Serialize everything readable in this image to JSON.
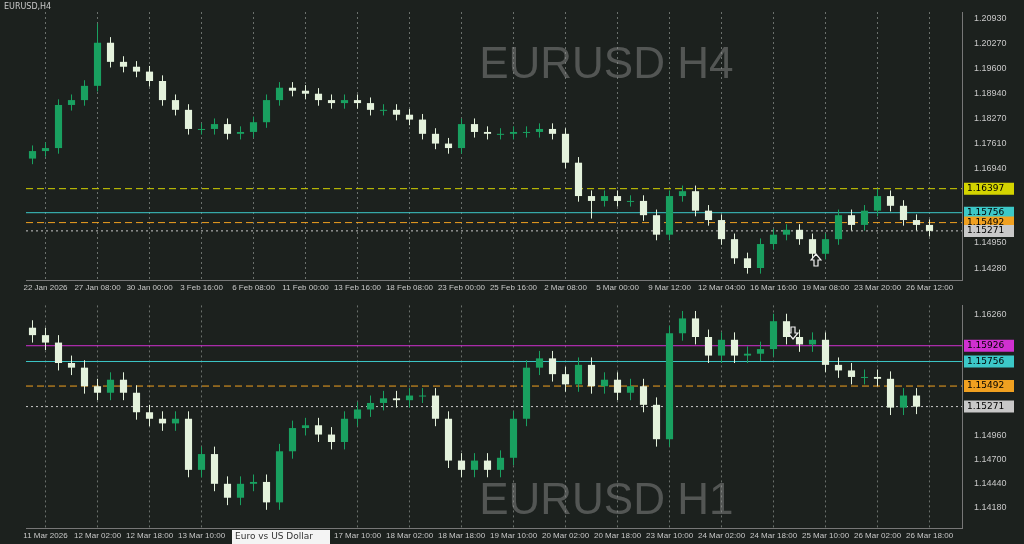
{
  "chart_data": [
    {
      "type": "candlestick",
      "title": "EURUSD,H4",
      "annotations": [
        "EURUSD H4"
      ],
      "grid": "x",
      "categories": [
        null,
        "22 Jan 2026",
        null,
        null,
        null,
        "27 Jan 08:00",
        null,
        null,
        null,
        "30 Jan 00:00",
        null,
        null,
        null,
        "3 Feb 16:00",
        null,
        null,
        null,
        "6 Feb 08:00",
        null,
        null,
        null,
        "11 Feb 00:00",
        null,
        null,
        null,
        "13 Feb 16:00",
        null,
        null,
        null,
        "18 Feb 08:00",
        null,
        null,
        null,
        "23 Feb 00:00",
        null,
        null,
        null,
        "25 Feb 16:00",
        null,
        null,
        null,
        "2 Mar 08:00",
        null,
        null,
        null,
        "5 Mar 00:00",
        null,
        null,
        null,
        "9 Mar 12:00",
        null,
        null,
        null,
        "12 Mar 04:00",
        null,
        null,
        null,
        "16 Mar 16:00",
        null,
        null,
        null,
        "19 Mar 08:00",
        null,
        null,
        null,
        "23 Mar 20:00",
        null,
        null,
        null,
        "26 Mar 12:00",
        null,
        null
      ],
      "ohlc": [
        [
          1.172,
          1.1755,
          1.1705,
          1.174
        ],
        [
          1.174,
          1.1763,
          1.1725,
          1.1748
        ],
        [
          1.1748,
          1.1878,
          1.1733,
          1.1863
        ],
        [
          1.1863,
          1.1891,
          1.1848,
          1.1876
        ],
        [
          1.1876,
          1.1929,
          1.1861,
          1.1914
        ],
        [
          1.1914,
          1.208,
          1.1899,
          1.2029
        ],
        [
          1.2029,
          1.2044,
          1.1963,
          1.1978
        ],
        [
          1.1978,
          1.1993,
          1.195,
          1.1965
        ],
        [
          1.1965,
          1.198,
          1.1937,
          1.1952
        ],
        [
          1.1952,
          1.1967,
          1.1912,
          1.1927
        ],
        [
          1.1927,
          1.1942,
          1.1861,
          1.1876
        ],
        [
          1.1876,
          1.1891,
          1.1835,
          1.185
        ],
        [
          1.185,
          1.1865,
          1.1784,
          1.1799
        ],
        [
          1.1799,
          1.1814,
          1.1784,
          1.1799
        ],
        [
          1.1799,
          1.1827,
          1.1784,
          1.1812
        ],
        [
          1.1812,
          1.1827,
          1.1771,
          1.1786
        ],
        [
          1.1786,
          1.1806,
          1.1771,
          1.1791
        ],
        [
          1.1791,
          1.1832,
          1.1776,
          1.1817
        ],
        [
          1.1817,
          1.1891,
          1.1802,
          1.1876
        ],
        [
          1.1876,
          1.1924,
          1.1861,
          1.1909
        ],
        [
          1.1909,
          1.1924,
          1.1886,
          1.1901
        ],
        [
          1.1901,
          1.1916,
          1.1878,
          1.1893
        ],
        [
          1.1893,
          1.1908,
          1.1861,
          1.1876
        ],
        [
          1.1876,
          1.1891,
          1.1853,
          1.1868
        ],
        [
          1.1868,
          1.1891,
          1.1853,
          1.1876
        ],
        [
          1.1876,
          1.1891,
          1.1853,
          1.1868
        ],
        [
          1.1868,
          1.1883,
          1.1835,
          1.185
        ],
        [
          1.185,
          1.1865,
          1.1835,
          1.185
        ],
        [
          1.185,
          1.1865,
          1.1822,
          1.1837
        ],
        [
          1.1837,
          1.1852,
          1.1809,
          1.1824
        ],
        [
          1.1824,
          1.1839,
          1.1771,
          1.1786
        ],
        [
          1.1786,
          1.1801,
          1.1745,
          1.176
        ],
        [
          1.176,
          1.1775,
          1.1733,
          1.1748
        ],
        [
          1.1748,
          1.1827,
          1.1733,
          1.1812
        ],
        [
          1.1812,
          1.1827,
          1.1776,
          1.1791
        ],
        [
          1.1791,
          1.1806,
          1.1771,
          1.1786
        ],
        [
          1.1786,
          1.1801,
          1.1771,
          1.1786
        ],
        [
          1.1786,
          1.1806,
          1.1771,
          1.1791
        ],
        [
          1.1791,
          1.1806,
          1.1776,
          1.1791
        ],
        [
          1.1791,
          1.1814,
          1.1776,
          1.1799
        ],
        [
          1.1799,
          1.1814,
          1.1771,
          1.1786
        ],
        [
          1.1786,
          1.1801,
          1.1694,
          1.1709
        ],
        [
          1.1709,
          1.1724,
          1.1605,
          1.162
        ],
        [
          1.162,
          1.1635,
          1.156,
          1.1607
        ],
        [
          1.1607,
          1.1635,
          1.1592,
          1.162
        ],
        [
          1.162,
          1.1635,
          1.1592,
          1.1607
        ],
        [
          1.1607,
          1.1622,
          1.1592,
          1.1607
        ],
        [
          1.1607,
          1.1622,
          1.1554,
          1.1569
        ],
        [
          1.1569,
          1.1584,
          1.1502,
          1.1517
        ],
        [
          1.1517,
          1.1635,
          1.1502,
          1.162
        ],
        [
          1.162,
          1.1648,
          1.1605,
          1.1633
        ],
        [
          1.1633,
          1.1648,
          1.1566,
          1.1581
        ],
        [
          1.1581,
          1.1596,
          1.1541,
          1.1556
        ],
        [
          1.1556,
          1.1571,
          1.149,
          1.1505
        ],
        [
          1.1505,
          1.152,
          1.1439,
          1.1454
        ],
        [
          1.1454,
          1.1469,
          1.1413,
          1.1428
        ],
        [
          1.1428,
          1.1507,
          1.1413,
          1.1492
        ],
        [
          1.1492,
          1.1532,
          1.1477,
          1.1517
        ],
        [
          1.1517,
          1.1545,
          1.1502,
          1.153
        ],
        [
          1.153,
          1.1545,
          1.149,
          1.1505
        ],
        [
          1.1505,
          1.152,
          1.1451,
          1.1466
        ],
        [
          1.1466,
          1.152,
          1.1451,
          1.1505
        ],
        [
          1.1505,
          1.1584,
          1.149,
          1.1569
        ],
        [
          1.1569,
          1.1584,
          1.1528,
          1.1543
        ],
        [
          1.1543,
          1.1596,
          1.1528,
          1.1581
        ],
        [
          1.1581,
          1.164,
          1.1566,
          1.162
        ],
        [
          1.162,
          1.1635,
          1.1579,
          1.1594
        ],
        [
          1.1594,
          1.1609,
          1.1541,
          1.1556
        ],
        [
          1.1556,
          1.1571,
          1.1528,
          1.1543
        ],
        [
          1.1543,
          1.1558,
          1.1512,
          1.1527
        ],
        null,
        null
      ],
      "ylim": [
        1.1395,
        1.2111
      ],
      "yticks": [
        {
          "value": 1.1428,
          "label": "1.14280"
        },
        {
          "value": 1.1495,
          "label": "1.14950"
        },
        {
          "value": 1.1694,
          "label": "1.16940"
        },
        {
          "value": 1.1761,
          "label": "1.17610"
        },
        {
          "value": 1.1827,
          "label": "1.18270"
        },
        {
          "value": 1.1894,
          "label": "1.18940"
        },
        {
          "value": 1.196,
          "label": "1.19600"
        },
        {
          "value": 1.2027,
          "label": "1.20270"
        },
        {
          "value": 1.2093,
          "label": "1.20930"
        }
      ],
      "ref_lines": [
        {
          "axis": "y",
          "value": 1.16397,
          "label": "1.16397",
          "color": "#d4d400",
          "line_style": "dashed"
        },
        {
          "axis": "y",
          "value": 1.15756,
          "label": "1.15756",
          "color": "#3cc8c8",
          "line_style": "solid"
        },
        {
          "axis": "y",
          "value": 1.15492,
          "label": "1.15492",
          "color": "#f0a020",
          "line_style": "dashed"
        },
        {
          "axis": "y",
          "value": 1.15271,
          "label": "1.15271",
          "color": "#c8c8c8",
          "line_style": "dotted"
        }
      ]
    },
    {
      "type": "candlestick",
      "annotations": [
        "EURUSD H1",
        "Euro vs US Dollar"
      ],
      "grid": "x",
      "categories": [
        null,
        "11 Mar 2026",
        null,
        null,
        null,
        "12 Mar 02:00",
        null,
        null,
        null,
        "12 Mar 18:00",
        null,
        null,
        null,
        "13 Mar 10:00",
        null,
        null,
        null,
        null,
        null,
        null,
        null,
        null,
        null,
        null,
        null,
        "17 Mar 10:00",
        null,
        null,
        null,
        "18 Mar 02:00",
        null,
        null,
        null,
        "18 Mar 18:00",
        null,
        null,
        null,
        "19 Mar 10:00",
        null,
        null,
        null,
        "20 Mar 02:00",
        null,
        null,
        null,
        "20 Mar 18:00",
        null,
        null,
        null,
        "23 Mar 10:00",
        null,
        null,
        null,
        "24 Mar 02:00",
        null,
        null,
        null,
        "24 Mar 18:00",
        null,
        null,
        null,
        "25 Mar 10:00",
        null,
        null,
        null,
        "26 Mar 02:00",
        null,
        null,
        null,
        "26 Mar 18:00",
        null,
        null
      ],
      "ohlc": [
        [
          1.1612,
          1.162,
          1.1596,
          1.1604
        ],
        [
          1.1604,
          1.1612,
          1.1588,
          1.1596
        ],
        [
          1.1596,
          1.1604,
          1.1566,
          1.1574
        ],
        [
          1.1574,
          1.1582,
          1.1561,
          1.1569
        ],
        [
          1.1569,
          1.1577,
          1.1541,
          1.1549
        ],
        [
          1.1549,
          1.1557,
          1.1534,
          1.1542
        ],
        [
          1.1542,
          1.1564,
          1.1534,
          1.1556
        ],
        [
          1.1556,
          1.1564,
          1.1534,
          1.1542
        ],
        [
          1.1542,
          1.155,
          1.1513,
          1.1521
        ],
        [
          1.1521,
          1.1529,
          1.1506,
          1.1514
        ],
        [
          1.1514,
          1.1522,
          1.1501,
          1.1509
        ],
        [
          1.1509,
          1.1522,
          1.1501,
          1.1514
        ],
        [
          1.1514,
          1.1522,
          1.1451,
          1.1459
        ],
        [
          1.1459,
          1.1484,
          1.1451,
          1.1476
        ],
        [
          1.1476,
          1.1484,
          1.1436,
          1.1444
        ],
        [
          1.1444,
          1.1452,
          1.1421,
          1.1429
        ],
        [
          1.1429,
          1.1452,
          1.1421,
          1.1444
        ],
        [
          1.1444,
          1.1454,
          1.1436,
          1.1446
        ],
        [
          1.1446,
          1.1454,
          1.1416,
          1.1424
        ],
        [
          1.1424,
          1.1487,
          1.1416,
          1.1479
        ],
        [
          1.1479,
          1.1512,
          1.1471,
          1.1504
        ],
        [
          1.1504,
          1.1515,
          1.1496,
          1.1507
        ],
        [
          1.1507,
          1.1515,
          1.1489,
          1.1497
        ],
        [
          1.1497,
          1.1505,
          1.1481,
          1.1489
        ],
        [
          1.1489,
          1.1522,
          1.1481,
          1.1514
        ],
        [
          1.1514,
          1.1532,
          1.1506,
          1.1524
        ],
        [
          1.1524,
          1.1539,
          1.1516,
          1.1531
        ],
        [
          1.1531,
          1.1544,
          1.1523,
          1.1536
        ],
        [
          1.1536,
          1.1544,
          1.1526,
          1.1534
        ],
        [
          1.1534,
          1.1547,
          1.1526,
          1.1539
        ],
        [
          1.1539,
          1.1547,
          1.1531,
          1.1539
        ],
        [
          1.1539,
          1.1547,
          1.1506,
          1.1514
        ],
        [
          1.1514,
          1.1522,
          1.1461,
          1.1469
        ],
        [
          1.1469,
          1.1477,
          1.1451,
          1.1459
        ],
        [
          1.1459,
          1.1477,
          1.1451,
          1.1469
        ],
        [
          1.1469,
          1.1477,
          1.1451,
          1.1459
        ],
        [
          1.1459,
          1.148,
          1.1451,
          1.1472
        ],
        [
          1.1472,
          1.1522,
          1.1464,
          1.1514
        ],
        [
          1.1514,
          1.1577,
          1.1506,
          1.1569
        ],
        [
          1.1569,
          1.1587,
          1.1561,
          1.1579
        ],
        [
          1.1579,
          1.1587,
          1.1554,
          1.1562
        ],
        [
          1.1562,
          1.157,
          1.1543,
          1.1551
        ],
        [
          1.1551,
          1.158,
          1.1543,
          1.1572
        ],
        [
          1.1572,
          1.158,
          1.1541,
          1.1549
        ],
        [
          1.1549,
          1.1564,
          1.1541,
          1.1556
        ],
        [
          1.1556,
          1.1564,
          1.1534,
          1.1542
        ],
        [
          1.1542,
          1.1557,
          1.1534,
          1.1549
        ],
        [
          1.1549,
          1.1557,
          1.1521,
          1.1529
        ],
        [
          1.1529,
          1.1537,
          1.1484,
          1.1492
        ],
        [
          1.1492,
          1.1614,
          1.1484,
          1.1606
        ],
        [
          1.1606,
          1.163,
          1.1598,
          1.1622
        ],
        [
          1.1622,
          1.163,
          1.1594,
          1.1602
        ],
        [
          1.1602,
          1.161,
          1.1574,
          1.1582
        ],
        [
          1.1582,
          1.1607,
          1.1574,
          1.1599
        ],
        [
          1.1599,
          1.1607,
          1.1574,
          1.1582
        ],
        [
          1.1582,
          1.1592,
          1.1574,
          1.1584
        ],
        [
          1.1584,
          1.1597,
          1.1576,
          1.1589
        ],
        [
          1.1589,
          1.1627,
          1.1581,
          1.1619
        ],
        [
          1.1619,
          1.1627,
          1.1594,
          1.1602
        ],
        [
          1.1602,
          1.161,
          1.1586,
          1.1594
        ],
        [
          1.1594,
          1.1607,
          1.1586,
          1.1599
        ],
        [
          1.1599,
          1.1607,
          1.1564,
          1.1572
        ],
        [
          1.1572,
          1.158,
          1.1558,
          1.1566
        ],
        [
          1.1566,
          1.1574,
          1.1551,
          1.1559
        ],
        [
          1.1559,
          1.1567,
          1.1551,
          1.1559
        ],
        [
          1.1559,
          1.1567,
          1.1549,
          1.1557
        ],
        [
          1.1557,
          1.1565,
          1.1518,
          1.1526
        ],
        [
          1.1526,
          1.1547,
          1.1518,
          1.1539
        ],
        [
          1.1539,
          1.1547,
          1.1519,
          1.1527
        ],
        null,
        null,
        null
      ],
      "ylim": [
        1.1396,
        1.1636
      ],
      "yticks": [
        {
          "value": 1.1418,
          "label": "1.14180"
        },
        {
          "value": 1.1444,
          "label": "1.14440"
        },
        {
          "value": 1.147,
          "label": "1.14700"
        },
        {
          "value": 1.1496,
          "label": "1.14960"
        },
        {
          "value": 1.1626,
          "label": "1.16260"
        }
      ],
      "ref_lines": [
        {
          "axis": "y",
          "value": 1.15926,
          "label": "1.15926",
          "color": "#d030d0",
          "line_style": "solid"
        },
        {
          "axis": "y",
          "value": 1.15756,
          "label": "1.15756",
          "color": "#3cc8c8",
          "line_style": "solid"
        },
        {
          "axis": "y",
          "value": 1.15492,
          "label": "1.15492",
          "color": "#f0a020",
          "line_style": "dashed"
        },
        {
          "axis": "y",
          "value": 1.15271,
          "label": "1.15271",
          "color": "#c8c8c8",
          "line_style": "dotted"
        }
      ]
    }
  ]
}
